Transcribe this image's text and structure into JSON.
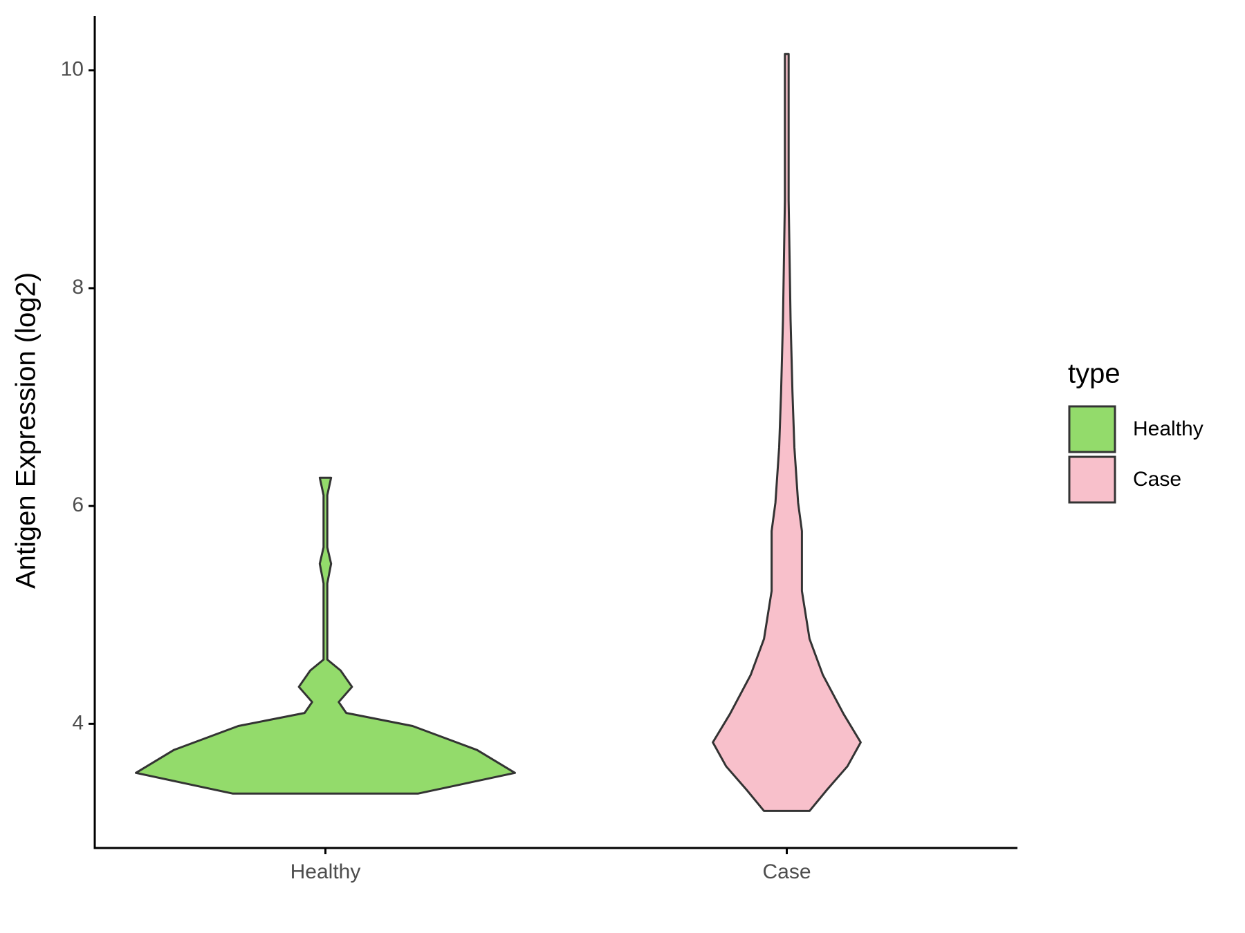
{
  "chart_data": {
    "type": "violin",
    "ylabel": "Antigen Expression (log2)",
    "categories": [
      "Healthy",
      "Case"
    ],
    "legend_title": "type",
    "legend": "right",
    "ylim": [
      2.86,
      10.5
    ],
    "yticks": [
      4,
      6,
      8,
      10
    ],
    "series": [
      {
        "name": "Healthy",
        "color": "#93db6b",
        "y": [
          3.36,
          3.55,
          3.76,
          3.98,
          4.1,
          4.2,
          4.34,
          4.49,
          4.59,
          5.29,
          5.47,
          5.62,
          6.1,
          6.26
        ],
        "density": [
          0.49,
          1.0,
          0.8,
          0.46,
          0.11,
          0.07,
          0.14,
          0.08,
          0.01,
          0.01,
          0.03,
          0.01,
          0.01,
          0.03
        ]
      },
      {
        "name": "Case",
        "color": "#f8c0cb",
        "y": [
          3.2,
          3.39,
          3.61,
          3.83,
          4.09,
          4.45,
          4.78,
          5.22,
          5.51,
          5.77,
          6.03,
          6.54,
          7.05,
          7.71,
          8.81,
          9.55,
          10.15
        ],
        "density": [
          0.12,
          0.21,
          0.32,
          0.39,
          0.3,
          0.19,
          0.12,
          0.08,
          0.08,
          0.08,
          0.06,
          0.04,
          0.03,
          0.02,
          0.01,
          0.01,
          0.01
        ]
      }
    ]
  }
}
